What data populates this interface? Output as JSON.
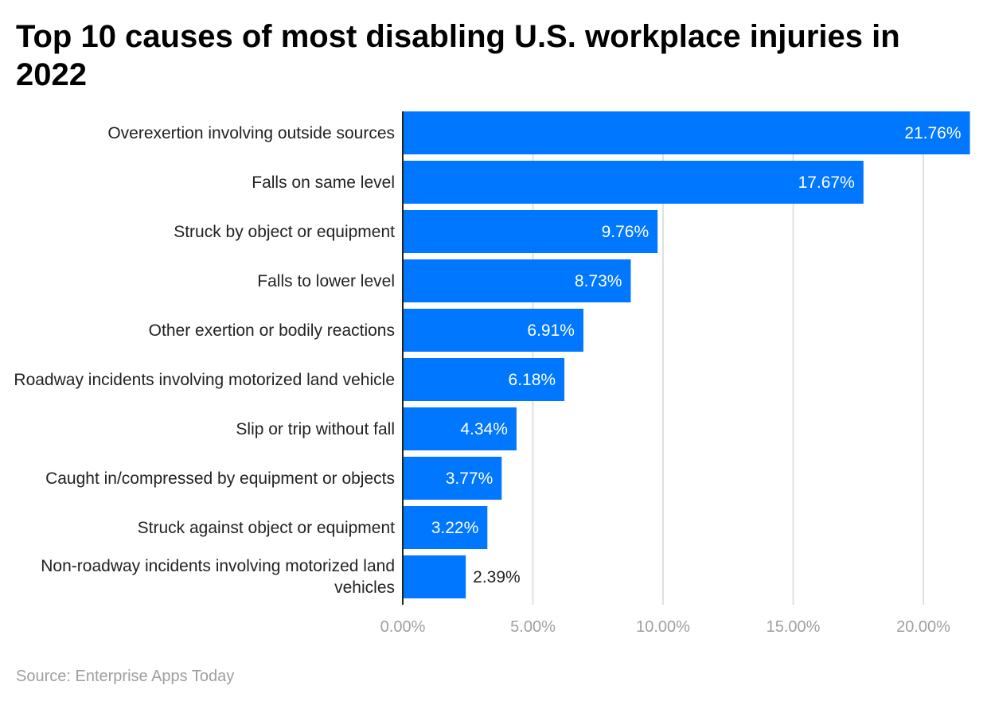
{
  "title": "Top 10 causes of most disabling U.S. workplace injuries in 2022",
  "source": "Source: Enterprise Apps Today",
  "colors": {
    "bar": "#0077ff",
    "grid": "#e0e0e0",
    "axis": "#222222",
    "tick_label": "#a0a0a0"
  },
  "chart_data": {
    "type": "bar",
    "orientation": "horizontal",
    "title": "Top 10 causes of most disabling U.S. workplace injuries in 2022",
    "categories": [
      "Overexertion involving outside sources",
      "Falls on same level",
      "Struck by object or equipment",
      "Falls to lower level",
      "Other exertion or bodily reactions",
      "Roadway incidents involving motorized land vehicle",
      "Slip or trip without fall",
      "Caught in/compressed by equipment or objects",
      "Struck against object or equipment",
      "Non-roadway incidents involving motorized land vehicles"
    ],
    "values": [
      21.76,
      17.67,
      9.76,
      8.73,
      6.91,
      6.18,
      4.34,
      3.77,
      3.22,
      2.39
    ],
    "data_labels": [
      "21.76%",
      "17.67%",
      "9.76%",
      "8.73%",
      "6.91%",
      "6.18%",
      "4.34%",
      "3.77%",
      "3.22%",
      "2.39%"
    ],
    "xlim": [
      0,
      21.76
    ],
    "xticks": [
      0,
      5,
      10,
      15,
      20
    ],
    "xtick_labels": [
      "0.00%",
      "5.00%",
      "10.00%",
      "15.00%",
      "20.00%"
    ],
    "grid": true,
    "xlabel": "",
    "ylabel": ""
  }
}
